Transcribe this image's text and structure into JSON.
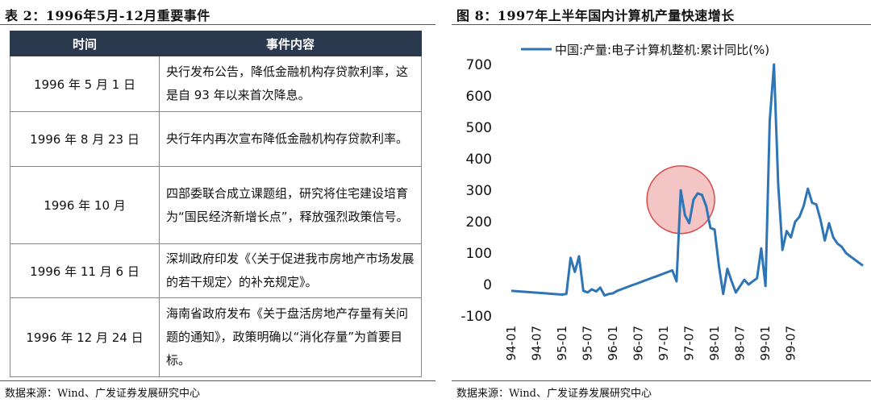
{
  "left": {
    "caption": "表 2：1996年5月-12月重要事件",
    "columns": [
      "时间",
      "事件内容"
    ],
    "rows": [
      {
        "date": "1996 年 5 月 1 日",
        "event": "央行发布公告，降低金融机构存贷款利率，这是自 93 年以来首次降息。"
      },
      {
        "date": "1996 年 8 月 23 日",
        "event": "央行年内再次宣布降低金融机构存贷款利率。"
      },
      {
        "date": "1996 年 10 月",
        "event": "四部委联合成立课题组，研究将住宅建设培育为“国民经济新增长点”，释放强烈政策信号。"
      },
      {
        "date": "1996 年 11 月 6 日",
        "event": "深圳政府印发《〈关于促进我市房地产市场发展的若干规定〉的补充规定》。"
      },
      {
        "date": "1996 年 12 月 24 日",
        "event": "海南省政府发布《关于盘活房地产存量有关问题的通知》，政策明确以“消化存量”为首要目标。"
      }
    ],
    "source": "数据来源：Wind、广发证券发展研究中心"
  },
  "right": {
    "caption": "图 8：1997年上半年国内计算机产量快速增长",
    "source": "数据来源：Wind、广发证券发展研究中心"
  },
  "chart_data": {
    "type": "line",
    "title": "",
    "xlabel": "",
    "ylabel": "",
    "ylim": [
      -100,
      700
    ],
    "yticks": [
      -100,
      0,
      100,
      200,
      300,
      400,
      500,
      600,
      700
    ],
    "xticks": [
      "94-01",
      "94-07",
      "95-01",
      "95-07",
      "96-01",
      "96-07",
      "97-01",
      "97-07",
      "98-01",
      "98-07",
      "99-01",
      "99-07"
    ],
    "grid": false,
    "legend_position": "top",
    "highlight_circle": {
      "x": 40,
      "y": 270
    },
    "series": [
      {
        "name": "中国:产量:电子计算机整机:累计同比(%)",
        "color": "#2e75b6",
        "x": [
          0,
          2,
          4,
          6,
          8,
          10,
          12,
          13,
          14,
          15,
          16,
          17,
          18,
          19,
          20,
          21,
          22,
          23,
          24,
          25,
          26,
          27,
          28,
          29,
          30,
          31,
          32,
          33,
          34,
          35,
          36,
          37,
          38,
          39,
          40,
          41,
          42,
          43,
          44,
          45,
          46,
          47,
          48,
          49,
          50,
          51,
          52,
          53,
          54,
          55,
          56,
          57,
          58,
          59,
          60,
          61,
          62,
          63,
          64,
          65,
          66,
          67,
          68,
          69,
          70,
          71,
          72,
          73,
          74,
          75,
          76,
          77,
          78,
          79,
          80,
          81,
          82,
          83
        ],
        "y": [
          -20,
          -22,
          -24,
          -26,
          -28,
          -30,
          -32,
          -30,
          85,
          40,
          90,
          -20,
          -25,
          -15,
          -22,
          -10,
          -35,
          -30,
          -28,
          -20,
          -15,
          -10,
          -5,
          0,
          5,
          10,
          15,
          20,
          25,
          30,
          35,
          40,
          45,
          10,
          300,
          220,
          195,
          270,
          290,
          285,
          250,
          180,
          175,
          60,
          -30,
          50,
          10,
          -25,
          -5,
          15,
          0,
          10,
          20,
          115,
          -5,
          520,
          700,
          320,
          110,
          170,
          150,
          200,
          215,
          250,
          305,
          260,
          255,
          205,
          140,
          195,
          150,
          130,
          120,
          100,
          90,
          80,
          70,
          60
        ]
      }
    ]
  }
}
